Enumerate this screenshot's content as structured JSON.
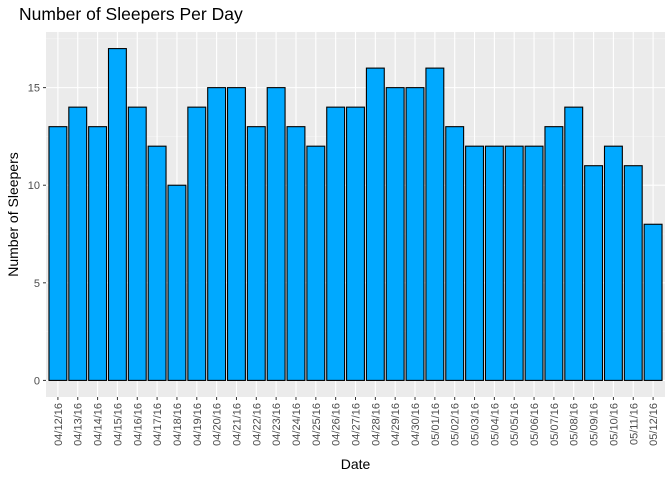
{
  "chart_data": {
    "type": "bar",
    "title": "Number of Sleepers Per Day",
    "xlabel": "Date",
    "ylabel": "Number of Sleepers",
    "ylim": [
      -0.85,
      17.85
    ],
    "yticks": [
      0,
      5,
      10,
      15
    ],
    "grid": true,
    "legend": "none",
    "colors": {
      "bar_fill": "#00A9FF",
      "bar_stroke": "#000000",
      "panel_bg": "#EBEBEB",
      "grid_major": "#FFFFFF",
      "grid_minor": "#F5F5F5",
      "tick_text": "#4D4D4D",
      "tick_mark": "#333333"
    },
    "categories": [
      "04/12/16",
      "04/13/16",
      "04/14/16",
      "04/15/16",
      "04/16/16",
      "04/17/16",
      "04/18/16",
      "04/19/16",
      "04/20/16",
      "04/21/16",
      "04/22/16",
      "04/23/16",
      "04/24/16",
      "04/25/16",
      "04/26/16",
      "04/27/16",
      "04/28/16",
      "04/29/16",
      "04/30/16",
      "05/01/16",
      "05/02/16",
      "05/03/16",
      "05/04/16",
      "05/05/16",
      "05/06/16",
      "05/07/16",
      "05/08/16",
      "05/09/16",
      "05/10/16",
      "05/11/16",
      "05/12/16"
    ],
    "values": [
      13,
      14,
      13,
      17,
      14,
      12,
      10,
      14,
      15,
      15,
      13,
      15,
      13,
      12,
      14,
      14,
      16,
      15,
      15,
      16,
      13,
      12,
      12,
      12,
      12,
      13,
      14,
      11,
      12,
      11,
      8
    ]
  }
}
